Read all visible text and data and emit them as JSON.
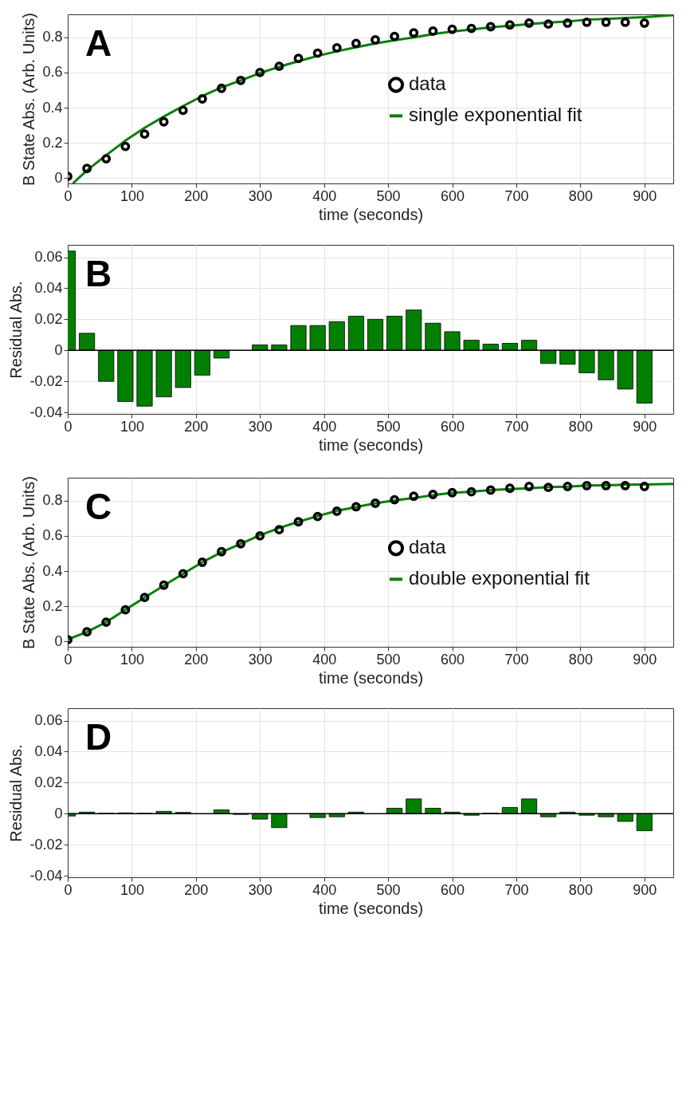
{
  "chart_data": [
    {
      "type": "scatter",
      "annotations": [
        "A"
      ],
      "xlabel": "time (seconds)",
      "ylabel": "B State Abs. (Arb. Units)",
      "xlim": [
        0,
        945
      ],
      "xticks": [
        0,
        100,
        200,
        300,
        400,
        500,
        600,
        700,
        800,
        900
      ],
      "ylim": [
        -0.03,
        0.93
      ],
      "yticks": [
        0,
        0.2,
        0.4,
        0.6,
        0.8
      ],
      "grid": true,
      "legend": "right",
      "series": [
        {
          "name": "data",
          "type": "scatter",
          "marker": "circle",
          "color": "#000000",
          "x": [
            0,
            30,
            60,
            90,
            120,
            150,
            180,
            210,
            240,
            270,
            300,
            330,
            360,
            390,
            420,
            450,
            480,
            510,
            540,
            570,
            600,
            630,
            660,
            690,
            720,
            750,
            780,
            810,
            840,
            870,
            900
          ],
          "values": [
            0.01,
            0.055,
            0.11,
            0.18,
            0.25,
            0.32,
            0.385,
            0.45,
            0.51,
            0.555,
            0.6,
            0.635,
            0.68,
            0.71,
            0.74,
            0.765,
            0.785,
            0.805,
            0.825,
            0.835,
            0.845,
            0.85,
            0.86,
            0.87,
            0.88,
            0.875,
            0.88,
            0.885,
            0.885,
            0.885,
            0.88
          ]
        },
        {
          "name": "single exponential fit",
          "type": "line",
          "color": "#0a7f0a",
          "x": [
            8,
            30,
            60,
            90,
            120,
            150,
            180,
            210,
            240,
            270,
            300,
            330,
            360,
            390,
            420,
            450,
            480,
            510,
            540,
            570,
            600,
            630,
            660,
            690,
            720,
            750,
            780,
            810,
            840,
            870,
            900,
            945
          ],
          "values": [
            -0.03,
            0.044,
            0.13,
            0.213,
            0.286,
            0.35,
            0.409,
            0.466,
            0.515,
            0.555,
            0.597,
            0.632,
            0.664,
            0.694,
            0.72,
            0.743,
            0.765,
            0.783,
            0.799,
            0.818,
            0.833,
            0.844,
            0.856,
            0.866,
            0.874,
            0.884,
            0.889,
            0.9,
            0.904,
            0.91,
            0.914,
            0.925
          ]
        }
      ]
    },
    {
      "type": "bar",
      "annotations": [
        "B"
      ],
      "xlabel": "time (seconds)",
      "ylabel": "Residual Abs.",
      "xlim": [
        0,
        945
      ],
      "xticks": [
        0,
        100,
        200,
        300,
        400,
        500,
        600,
        700,
        800,
        900
      ],
      "ylim": [
        -0.041,
        0.068
      ],
      "yticks": [
        -0.04,
        -0.02,
        0,
        0.02,
        0.04,
        0.06
      ],
      "grid": true,
      "color": "#007f00",
      "ref_lines": [
        {
          "axis": "y",
          "value": 0,
          "color": "#000000"
        }
      ],
      "x": [
        0,
        30,
        60,
        90,
        120,
        150,
        180,
        210,
        240,
        270,
        300,
        330,
        360,
        390,
        420,
        450,
        480,
        510,
        540,
        570,
        600,
        630,
        660,
        690,
        720,
        750,
        780,
        810,
        840,
        870,
        900
      ],
      "values": [
        0.064,
        0.011,
        -0.02,
        -0.033,
        -0.036,
        -0.03,
        -0.024,
        -0.016,
        -0.005,
        null,
        0.0035,
        0.0035,
        0.016,
        0.016,
        0.0185,
        0.022,
        0.02,
        0.022,
        0.026,
        0.0175,
        0.012,
        0.0065,
        0.004,
        0.0045,
        0.0065,
        -0.0085,
        -0.009,
        -0.0145,
        -0.019,
        -0.025,
        -0.034
      ]
    },
    {
      "type": "scatter",
      "annotations": [
        "C"
      ],
      "xlabel": "time (seconds)",
      "ylabel": "B State Abs. (Arb. Units)",
      "xlim": [
        0,
        945
      ],
      "xticks": [
        0,
        100,
        200,
        300,
        400,
        500,
        600,
        700,
        800,
        900
      ],
      "ylim": [
        -0.03,
        0.93
      ],
      "yticks": [
        0,
        0.2,
        0.4,
        0.6,
        0.8
      ],
      "grid": true,
      "legend": "right",
      "series": [
        {
          "name": "data",
          "type": "scatter",
          "marker": "circle",
          "color": "#000000",
          "x": [
            0,
            30,
            60,
            90,
            120,
            150,
            180,
            210,
            240,
            270,
            300,
            330,
            360,
            390,
            420,
            450,
            480,
            510,
            540,
            570,
            600,
            630,
            660,
            690,
            720,
            750,
            780,
            810,
            840,
            870,
            900
          ],
          "values": [
            0.01,
            0.055,
            0.11,
            0.18,
            0.25,
            0.32,
            0.385,
            0.45,
            0.51,
            0.555,
            0.6,
            0.635,
            0.68,
            0.71,
            0.74,
            0.765,
            0.785,
            0.805,
            0.825,
            0.835,
            0.845,
            0.85,
            0.86,
            0.87,
            0.88,
            0.875,
            0.88,
            0.885,
            0.885,
            0.885,
            0.88
          ]
        },
        {
          "name": "double exponential fit",
          "type": "line",
          "color": "#0a7f0a",
          "x": [
            0,
            30,
            60,
            90,
            120,
            150,
            180,
            210,
            240,
            270,
            300,
            330,
            360,
            390,
            420,
            450,
            480,
            510,
            540,
            570,
            600,
            630,
            660,
            690,
            720,
            750,
            780,
            810,
            840,
            870,
            900,
            945
          ],
          "values": [
            0.012,
            0.054,
            0.11,
            0.18,
            0.25,
            0.318,
            0.384,
            0.45,
            0.507,
            0.555,
            0.603,
            0.644,
            0.68,
            0.712,
            0.742,
            0.764,
            0.785,
            0.801,
            0.815,
            0.831,
            0.844,
            0.851,
            0.86,
            0.866,
            0.87,
            0.877,
            0.879,
            0.886,
            0.887,
            0.89,
            0.891,
            0.895
          ]
        }
      ]
    },
    {
      "type": "bar",
      "annotations": [
        "D"
      ],
      "xlabel": "time (seconds)",
      "ylabel": "Residual Abs.",
      "xlim": [
        0,
        945
      ],
      "xticks": [
        0,
        100,
        200,
        300,
        400,
        500,
        600,
        700,
        800,
        900
      ],
      "ylim": [
        -0.041,
        0.068
      ],
      "yticks": [
        -0.04,
        -0.02,
        0,
        0.02,
        0.04,
        0.06
      ],
      "grid": true,
      "color": "#007f00",
      "ref_lines": [
        {
          "axis": "y",
          "value": 0,
          "color": "#000000"
        }
      ],
      "x": [
        0,
        30,
        60,
        90,
        120,
        150,
        180,
        210,
        240,
        270,
        300,
        330,
        360,
        390,
        420,
        450,
        480,
        510,
        540,
        570,
        600,
        630,
        660,
        690,
        720,
        750,
        780,
        810,
        840,
        870,
        900
      ],
      "values": [
        -0.0015,
        0.001,
        0.0003,
        0.0005,
        0.0002,
        0.0015,
        0.0008,
        null,
        0.0025,
        -0.0005,
        -0.0035,
        -0.009,
        null,
        -0.0025,
        -0.002,
        0.001,
        null,
        0.0035,
        0.0095,
        0.0035,
        0.001,
        -0.001,
        0.0003,
        0.004,
        0.0095,
        -0.002,
        0.001,
        -0.001,
        -0.002,
        -0.005,
        -0.011
      ]
    }
  ]
}
